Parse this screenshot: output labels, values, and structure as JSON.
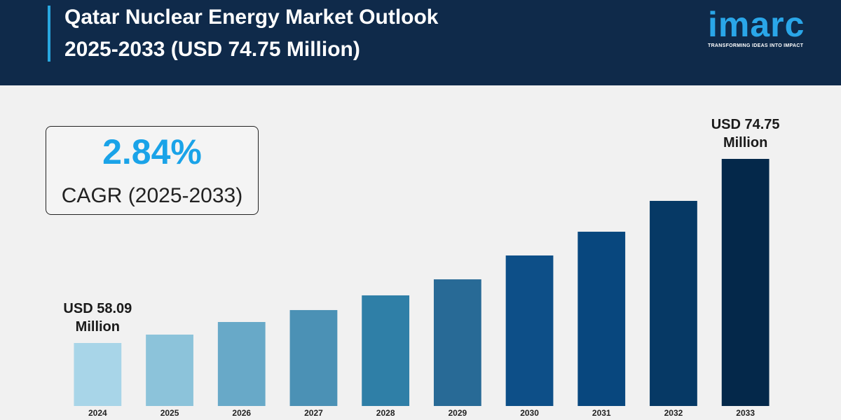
{
  "header": {
    "logo": {
      "text": "imarc",
      "tagline": "TRANSFORMING IDEAS INTO IMPACT"
    }
  },
  "chart_data": {
    "type": "bar",
    "title": "Qatar Nuclear Energy Market Outlook 2025-2033 (USD 74.75 Million)",
    "annotation": {
      "value": "2.84%",
      "label": "CAGR (2025-2033)"
    },
    "categories": [
      "2024",
      "2025",
      "2026",
      "2027",
      "2028",
      "2029",
      "2030",
      "2031",
      "2032",
      "2033"
    ],
    "values": [
      58.09,
      58.85,
      59.99,
      61.07,
      62.4,
      63.85,
      66.01,
      68.16,
      70.95,
      74.75
    ],
    "value_labels": [
      "USD 58.09 Million",
      null,
      null,
      null,
      null,
      null,
      null,
      null,
      null,
      "USD 74.75 Million"
    ],
    "colors": [
      "#a8d5e8",
      "#8cc3da",
      "#68a9c8",
      "#4b91b5",
      "#2f7fa7",
      "#286a96",
      "#0d4f88",
      "#08477e",
      "#063965",
      "#04284a"
    ]
  }
}
